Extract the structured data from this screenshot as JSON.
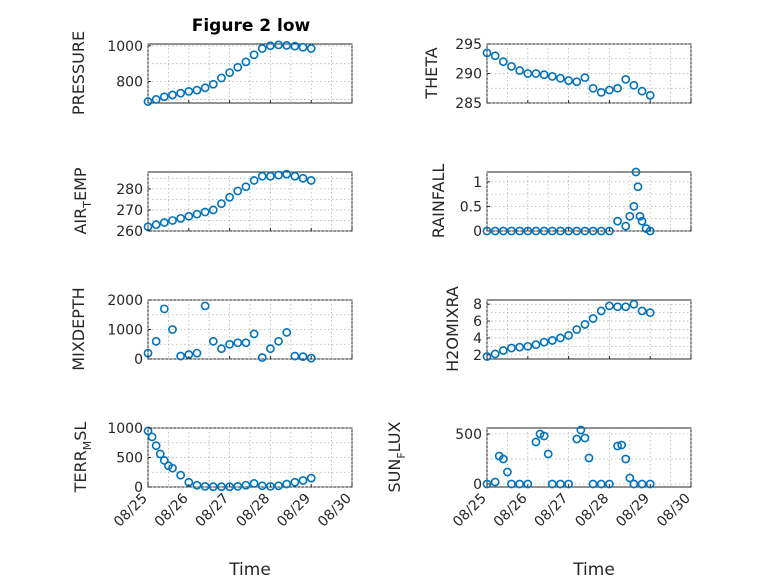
{
  "title": "Figure 2 low",
  "colors": {
    "marker": "#0072BD",
    "axis": "#262626",
    "grid": "#b3b3b3"
  },
  "chart_data": [
    {
      "type": "scatter",
      "ylabel": "PRESSURE",
      "xlabel": "",
      "ylim": [
        680,
        1010
      ],
      "yticks": [
        800,
        1000
      ],
      "x": [
        0,
        0.2,
        0.4,
        0.6,
        0.8,
        1.0,
        1.2,
        1.4,
        1.6,
        1.8,
        2.0,
        2.2,
        2.4,
        2.6,
        2.8,
        3.0,
        3.2,
        3.4,
        3.6,
        3.8,
        4.0
      ],
      "values": [
        688,
        700,
        715,
        725,
        735,
        745,
        752,
        765,
        785,
        820,
        850,
        880,
        910,
        950,
        985,
        1000,
        1005,
        1002,
        998,
        992,
        985
      ]
    },
    {
      "type": "scatter",
      "ylabel": "THETA",
      "xlabel": "",
      "ylim": [
        285,
        295
      ],
      "yticks": [
        285,
        290,
        295
      ],
      "x": [
        0,
        0.2,
        0.4,
        0.6,
        0.8,
        1.0,
        1.2,
        1.4,
        1.6,
        1.8,
        2.0,
        2.2,
        2.4,
        2.6,
        2.8,
        3.0,
        3.2,
        3.4,
        3.6,
        3.8,
        4.0
      ],
      "values": [
        293.5,
        293,
        292,
        291.2,
        290.5,
        290,
        290,
        289.8,
        289.5,
        289.2,
        288.8,
        288.6,
        289.3,
        287.5,
        286.8,
        287.2,
        287.5,
        289,
        288,
        287,
        286.3
      ]
    },
    {
      "type": "scatter",
      "ylabel": "AIR_TEMP",
      "xlabel": "",
      "ylim": [
        260,
        288
      ],
      "yticks": [
        260,
        270,
        280
      ],
      "x": [
        0,
        0.2,
        0.4,
        0.6,
        0.8,
        1.0,
        1.2,
        1.4,
        1.6,
        1.8,
        2.0,
        2.2,
        2.4,
        2.6,
        2.8,
        3.0,
        3.2,
        3.4,
        3.6,
        3.8,
        4.0
      ],
      "values": [
        262,
        263,
        264,
        265,
        266,
        267,
        268,
        269,
        270,
        273,
        276,
        279,
        281,
        284,
        286,
        286,
        286.5,
        287,
        286,
        285,
        284
      ]
    },
    {
      "type": "scatter",
      "ylabel": "RAINFALL",
      "xlabel": "",
      "ylim": [
        0,
        1.2
      ],
      "yticks": [
        0,
        0.5,
        1
      ],
      "x": [
        0,
        0.2,
        0.4,
        0.6,
        0.8,
        1.0,
        1.2,
        1.4,
        1.6,
        1.8,
        2.0,
        2.2,
        2.4,
        2.6,
        2.8,
        3.0,
        3.2,
        3.4,
        3.5,
        3.6,
        3.65,
        3.7,
        3.75,
        3.8,
        3.9,
        4.0
      ],
      "values": [
        0,
        0,
        0,
        0,
        0,
        0,
        0,
        0,
        0,
        0,
        0,
        0,
        0,
        0,
        0,
        0,
        0.2,
        0.1,
        0.3,
        0.5,
        1.2,
        0.9,
        0.3,
        0.2,
        0.05,
        0
      ]
    },
    {
      "type": "scatter",
      "ylabel": "MIXDEPTH",
      "xlabel": "",
      "ylim": [
        0,
        2000
      ],
      "yticks": [
        0,
        1000,
        2000
      ],
      "x": [
        0,
        0.2,
        0.4,
        0.6,
        0.8,
        1.0,
        1.2,
        1.4,
        1.6,
        1.8,
        2.0,
        2.2,
        2.4,
        2.6,
        2.8,
        3.0,
        3.2,
        3.4,
        3.6,
        3.8,
        4.0
      ],
      "values": [
        200,
        600,
        1700,
        1000,
        100,
        150,
        200,
        1800,
        600,
        350,
        500,
        550,
        550,
        850,
        50,
        350,
        600,
        900,
        100,
        80,
        30
      ]
    },
    {
      "type": "scatter",
      "ylabel": "H2OMIXRA",
      "xlabel": "",
      "ylim": [
        1.5,
        8.5
      ],
      "yticks": [
        2,
        4,
        6,
        8
      ],
      "x": [
        0,
        0.2,
        0.4,
        0.6,
        0.8,
        1.0,
        1.2,
        1.4,
        1.6,
        1.8,
        2.0,
        2.2,
        2.4,
        2.6,
        2.8,
        3.0,
        3.2,
        3.4,
        3.6,
        3.8,
        4.0
      ],
      "values": [
        1.8,
        2.1,
        2.5,
        2.8,
        2.9,
        3.0,
        3.2,
        3.5,
        3.7,
        4.0,
        4.3,
        5.0,
        5.6,
        6.3,
        7.2,
        7.8,
        7.7,
        7.7,
        8.0,
        7.2,
        7.0
      ]
    },
    {
      "type": "scatter",
      "ylabel": "TERR_MSL",
      "xlabel": "Time",
      "ylim": [
        0,
        1000
      ],
      "yticks": [
        0,
        500,
        1000
      ],
      "xticklabels": [
        "08/25",
        "08/26",
        "08/27",
        "08/28",
        "08/29",
        "08/30"
      ],
      "x": [
        0,
        0.1,
        0.2,
        0.3,
        0.4,
        0.5,
        0.6,
        0.8,
        1.0,
        1.2,
        1.4,
        1.6,
        1.8,
        2.0,
        2.2,
        2.4,
        2.6,
        2.8,
        3.0,
        3.2,
        3.4,
        3.6,
        3.8,
        4.0
      ],
      "values": [
        950,
        850,
        700,
        560,
        450,
        360,
        320,
        200,
        80,
        30,
        10,
        5,
        5,
        5,
        10,
        30,
        60,
        20,
        10,
        20,
        50,
        80,
        110,
        150
      ]
    },
    {
      "type": "scatter",
      "ylabel": "SUN_FLUX",
      "xlabel": "Time",
      "ylim": [
        -30,
        560
      ],
      "yticks": [
        0,
        500
      ],
      "xticklabels": [
        "08/25",
        "08/26",
        "08/27",
        "08/28",
        "08/29",
        "08/30"
      ],
      "x": [
        0,
        0.2,
        0.3,
        0.4,
        0.5,
        0.6,
        0.8,
        1.0,
        1.2,
        1.3,
        1.4,
        1.5,
        1.6,
        1.8,
        2.0,
        2.2,
        2.3,
        2.4,
        2.5,
        2.6,
        2.8,
        3.0,
        3.2,
        3.3,
        3.4,
        3.5,
        3.6,
        3.8,
        4.0
      ],
      "values": [
        0,
        20,
        280,
        250,
        120,
        0,
        0,
        0,
        420,
        500,
        480,
        300,
        0,
        0,
        0,
        450,
        540,
        460,
        260,
        0,
        0,
        0,
        380,
        390,
        250,
        60,
        0,
        0,
        0
      ]
    }
  ]
}
